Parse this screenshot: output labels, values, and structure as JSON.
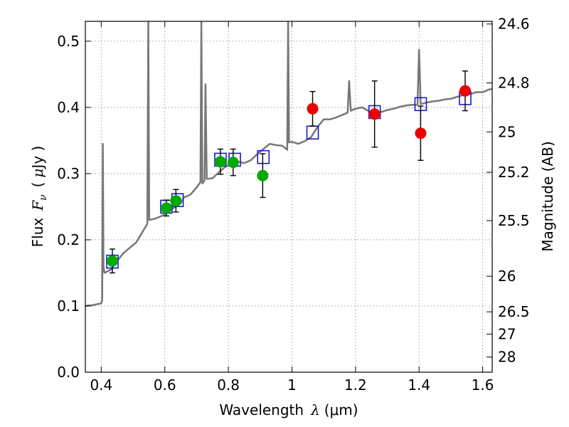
{
  "chart_data": {
    "type": "scatter",
    "xlabel": "Wavelength",
    "xlabel_symbol": "λ",
    "xlabel_unit": "(μm)",
    "ylabel": "Flux",
    "ylabel_symbol": "F",
    "ylabel_subscript": "ν",
    "ylabel_unit_open": "(",
    "ylabel_unit_mu": "μ",
    "ylabel_unit_close": "Jy )",
    "y2label": "Magnitude (AB)",
    "xlim": [
      0.35,
      1.63
    ],
    "ylim": [
      0.0,
      0.53
    ],
    "grid": true,
    "x_ticks": [
      0.4,
      0.6,
      0.8,
      1.0,
      1.2,
      1.4,
      1.6
    ],
    "x_tick_labels": [
      "0.4",
      "0.6",
      "0.8",
      "1",
      "1.2",
      "1.4",
      "1.6"
    ],
    "y_ticks": [
      0.0,
      0.1,
      0.2,
      0.3,
      0.4,
      0.5
    ],
    "y_tick_labels": [
      "0.0",
      "0.1",
      "0.2",
      "0.3",
      "0.4",
      "0.5"
    ],
    "y2_ticks": [
      {
        "label": "24.6",
        "flux": 0.526
      },
      {
        "label": "24.8",
        "flux": 0.437
      },
      {
        "label": "25",
        "flux": 0.363
      },
      {
        "label": "25.2",
        "flux": 0.302
      },
      {
        "label": "25.5",
        "flux": 0.229
      },
      {
        "label": "26",
        "flux": 0.145
      },
      {
        "label": "26.5",
        "flux": 0.0912
      },
      {
        "label": "27",
        "flux": 0.0575
      },
      {
        "label": "28",
        "flux": 0.0229
      }
    ],
    "colors": {
      "model": "#777777",
      "green": "#00aa00",
      "red": "#ee0000",
      "box": "#1a1acc",
      "error": "#000000",
      "grid": "#888888"
    },
    "series": [
      {
        "kind": "points",
        "color": "green",
        "points": [
          {
            "x": 0.435,
            "y": 0.168,
            "err": 0.018
          },
          {
            "x": 0.605,
            "y": 0.248,
            "err": 0.012
          },
          {
            "x": 0.635,
            "y": 0.259,
            "err": 0.017
          },
          {
            "x": 0.775,
            "y": 0.318,
            "err": 0.019
          },
          {
            "x": 0.815,
            "y": 0.317,
            "err": 0.02
          },
          {
            "x": 0.908,
            "y": 0.297,
            "err": 0.033
          }
        ]
      },
      {
        "kind": "points",
        "color": "red",
        "points": [
          {
            "x": 1.065,
            "y": 0.398,
            "err": 0.026
          },
          {
            "x": 1.26,
            "y": 0.39,
            "err": 0.05
          },
          {
            "x": 1.405,
            "y": 0.361,
            "err": 0.041
          },
          {
            "x": 1.545,
            "y": 0.425,
            "err": 0.03
          }
        ]
      },
      {
        "kind": "model-synthetic",
        "color": "box",
        "points": [
          {
            "x": 0.435,
            "y": 0.167
          },
          {
            "x": 0.605,
            "y": 0.25
          },
          {
            "x": 0.64,
            "y": 0.26
          },
          {
            "x": 0.775,
            "y": 0.321
          },
          {
            "x": 0.82,
            "y": 0.321
          },
          {
            "x": 0.91,
            "y": 0.325
          },
          {
            "x": 1.065,
            "y": 0.362
          },
          {
            "x": 1.26,
            "y": 0.393
          },
          {
            "x": 1.405,
            "y": 0.405
          },
          {
            "x": 1.545,
            "y": 0.414
          }
        ]
      }
    ],
    "model_spectrum": [
      [
        0.35,
        0.1
      ],
      [
        0.36,
        0.101
      ],
      [
        0.37,
        0.101
      ],
      [
        0.38,
        0.102
      ],
      [
        0.39,
        0.103
      ],
      [
        0.4,
        0.104
      ],
      [
        0.403,
        0.11
      ],
      [
        0.405,
        0.345
      ],
      [
        0.407,
        0.16
      ],
      [
        0.41,
        0.15
      ],
      [
        0.43,
        0.155
      ],
      [
        0.45,
        0.168
      ],
      [
        0.47,
        0.18
      ],
      [
        0.49,
        0.188
      ],
      [
        0.51,
        0.196
      ],
      [
        0.53,
        0.212
      ],
      [
        0.545,
        0.224
      ],
      [
        0.548,
        0.53
      ],
      [
        0.551,
        0.23
      ],
      [
        0.57,
        0.232
      ],
      [
        0.59,
        0.236
      ],
      [
        0.61,
        0.241
      ],
      [
        0.63,
        0.249
      ],
      [
        0.65,
        0.255
      ],
      [
        0.66,
        0.264
      ],
      [
        0.68,
        0.268
      ],
      [
        0.7,
        0.279
      ],
      [
        0.712,
        0.287
      ],
      [
        0.715,
        0.53
      ],
      [
        0.718,
        0.285
      ],
      [
        0.725,
        0.29
      ],
      [
        0.728,
        0.435
      ],
      [
        0.732,
        0.292
      ],
      [
        0.75,
        0.293
      ],
      [
        0.77,
        0.302
      ],
      [
        0.79,
        0.31
      ],
      [
        0.81,
        0.315
      ],
      [
        0.83,
        0.318
      ],
      [
        0.85,
        0.316
      ],
      [
        0.87,
        0.32
      ],
      [
        0.89,
        0.329
      ],
      [
        0.91,
        0.337
      ],
      [
        0.93,
        0.345
      ],
      [
        0.95,
        0.343
      ],
      [
        0.97,
        0.342
      ],
      [
        0.985,
        0.336
      ],
      [
        0.988,
        0.53
      ],
      [
        0.991,
        0.347
      ],
      [
        1.0,
        0.348
      ],
      [
        1.02,
        0.345
      ],
      [
        1.04,
        0.349
      ],
      [
        1.06,
        0.355
      ],
      [
        1.08,
        0.37
      ],
      [
        1.1,
        0.382
      ],
      [
        1.12,
        0.382
      ],
      [
        1.14,
        0.385
      ],
      [
        1.16,
        0.389
      ],
      [
        1.175,
        0.392
      ],
      [
        1.18,
        0.44
      ],
      [
        1.185,
        0.395
      ],
      [
        1.2,
        0.398
      ],
      [
        1.22,
        0.4
      ],
      [
        1.24,
        0.395
      ],
      [
        1.26,
        0.39
      ],
      [
        1.28,
        0.393
      ],
      [
        1.3,
        0.396
      ],
      [
        1.32,
        0.398
      ],
      [
        1.34,
        0.401
      ],
      [
        1.36,
        0.403
      ],
      [
        1.38,
        0.404
      ],
      [
        1.395,
        0.404
      ],
      [
        1.4,
        0.487
      ],
      [
        1.405,
        0.405
      ],
      [
        1.42,
        0.407
      ],
      [
        1.44,
        0.409
      ],
      [
        1.46,
        0.41
      ],
      [
        1.48,
        0.412
      ],
      [
        1.5,
        0.413
      ],
      [
        1.52,
        0.416
      ],
      [
        1.54,
        0.419
      ],
      [
        1.56,
        0.42
      ],
      [
        1.58,
        0.423
      ],
      [
        1.6,
        0.423
      ],
      [
        1.62,
        0.427
      ],
      [
        1.63,
        0.428
      ]
    ]
  }
}
